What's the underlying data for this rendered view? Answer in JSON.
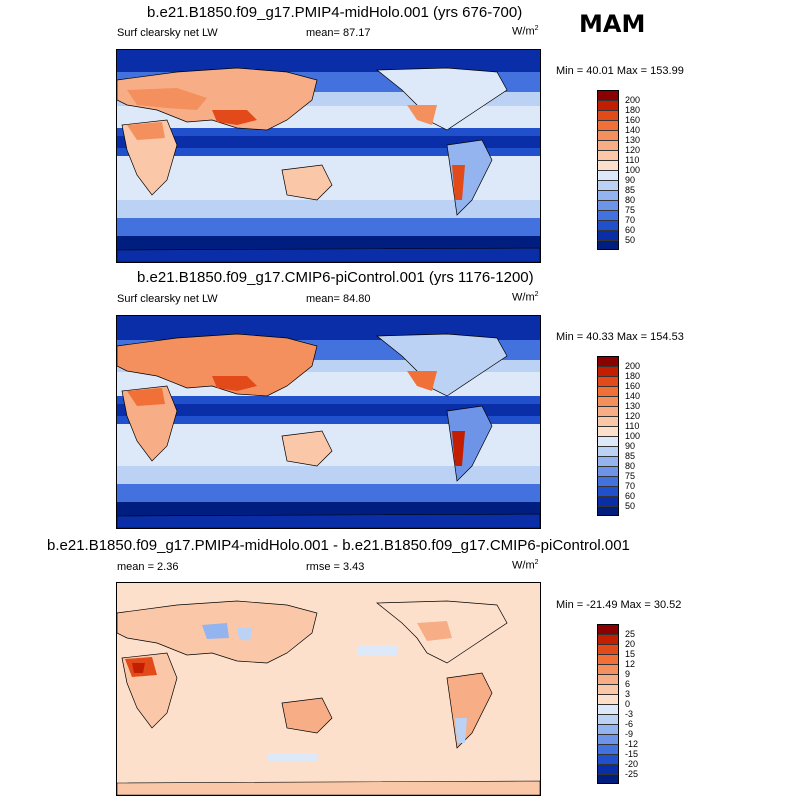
{
  "season": "MAM",
  "panels": [
    {
      "title": "b.e21.B1850.f09_g17.PMIP4-midHolo.001 (yrs 676-700)",
      "left_label": "Surf clearsky net LW",
      "mean_label": "mean=  87.17",
      "rmse_label": "",
      "units": "W/m",
      "units_sup": "2",
      "minmax": "Min =  40.01 Max = 153.99",
      "colorbar": {
        "labels": [
          "200",
          "180",
          "160",
          "140",
          "130",
          "120",
          "110",
          "100",
          "90",
          "85",
          "80",
          "75",
          "70",
          "60",
          "50"
        ],
        "colors": [
          "#8b0000",
          "#c41e00",
          "#e34a1a",
          "#f07038",
          "#f4905e",
          "#f7ad85",
          "#fac8a8",
          "#fde0cc",
          "#dde8f8",
          "#bcd2f4",
          "#93b4ee",
          "#6d94e6",
          "#4372de",
          "#2050cc",
          "#0a2ea8",
          "#001e80"
        ]
      }
    },
    {
      "title": "b.e21.B1850.f09_g17.CMIP6-piControl.001 (yrs 1176-1200)",
      "left_label": "Surf clearsky net LW",
      "mean_label": "mean=  84.80",
      "rmse_label": "",
      "units": "W/m",
      "units_sup": "2",
      "minmax": "Min =  40.33 Max = 154.53",
      "colorbar": {
        "labels": [
          "200",
          "180",
          "160",
          "140",
          "130",
          "120",
          "110",
          "100",
          "90",
          "85",
          "80",
          "75",
          "70",
          "60",
          "50"
        ],
        "colors": [
          "#8b0000",
          "#c41e00",
          "#e34a1a",
          "#f07038",
          "#f4905e",
          "#f7ad85",
          "#fac8a8",
          "#fde0cc",
          "#dde8f8",
          "#bcd2f4",
          "#93b4ee",
          "#6d94e6",
          "#4372de",
          "#2050cc",
          "#0a2ea8",
          "#001e80"
        ]
      }
    },
    {
      "title": "b.e21.B1850.f09_g17.PMIP4-midHolo.001 - b.e21.B1850.f09_g17.CMIP6-piControl.001",
      "left_label": "",
      "mean_label": "mean =   2.36",
      "rmse_label": "rmse =   3.43",
      "units": "W/m",
      "units_sup": "2",
      "minmax": "Min = -21.49 Max =  30.52",
      "colorbar": {
        "labels": [
          "25",
          "20",
          "15",
          "12",
          "9",
          "6",
          "3",
          "0",
          "-3",
          "-6",
          "-9",
          "-12",
          "-15",
          "-20",
          "-25"
        ],
        "colors": [
          "#8b0000",
          "#c41e00",
          "#e34a1a",
          "#f07038",
          "#f4905e",
          "#f7ad85",
          "#fac8a8",
          "#fde0cc",
          "#dde8f8",
          "#bcd2f4",
          "#93b4ee",
          "#6d94e6",
          "#4372de",
          "#2050cc",
          "#0a2ea8",
          "#001e80"
        ]
      }
    }
  ]
}
